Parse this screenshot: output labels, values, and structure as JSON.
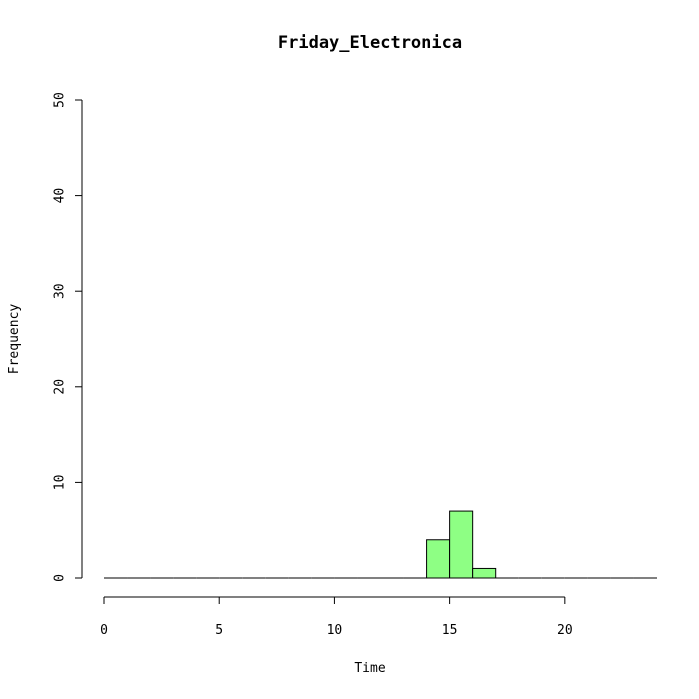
{
  "chart_data": {
    "type": "bar",
    "title": "Friday_Electronica",
    "xlabel": "Time",
    "ylabel": "Frequency",
    "bar_color": "#8eff84",
    "xlim": [
      0,
      24
    ],
    "ylim": [
      0,
      50
    ],
    "x_ticks": [
      0,
      5,
      10,
      15,
      20
    ],
    "y_ticks": [
      0,
      10,
      20,
      30,
      40,
      50
    ],
    "bins": [
      {
        "start": 0,
        "end": 1,
        "count": 0
      },
      {
        "start": 1,
        "end": 2,
        "count": 0
      },
      {
        "start": 2,
        "end": 3,
        "count": 0
      },
      {
        "start": 3,
        "end": 4,
        "count": 0
      },
      {
        "start": 4,
        "end": 5,
        "count": 0
      },
      {
        "start": 5,
        "end": 6,
        "count": 0
      },
      {
        "start": 6,
        "end": 7,
        "count": 0
      },
      {
        "start": 7,
        "end": 8,
        "count": 0
      },
      {
        "start": 8,
        "end": 9,
        "count": 0
      },
      {
        "start": 9,
        "end": 10,
        "count": 0
      },
      {
        "start": 10,
        "end": 11,
        "count": 0
      },
      {
        "start": 11,
        "end": 12,
        "count": 0
      },
      {
        "start": 12,
        "end": 13,
        "count": 0
      },
      {
        "start": 13,
        "end": 14,
        "count": 0
      },
      {
        "start": 14,
        "end": 15,
        "count": 4
      },
      {
        "start": 15,
        "end": 16,
        "count": 7
      },
      {
        "start": 16,
        "end": 17,
        "count": 1
      },
      {
        "start": 17,
        "end": 18,
        "count": 0
      },
      {
        "start": 18,
        "end": 19,
        "count": 0
      },
      {
        "start": 19,
        "end": 20,
        "count": 0
      },
      {
        "start": 20,
        "end": 21,
        "count": 0
      },
      {
        "start": 21,
        "end": 22,
        "count": 0
      },
      {
        "start": 22,
        "end": 23,
        "count": 0
      },
      {
        "start": 23,
        "end": 24,
        "count": 0
      }
    ],
    "grid": false,
    "legend": "none"
  }
}
